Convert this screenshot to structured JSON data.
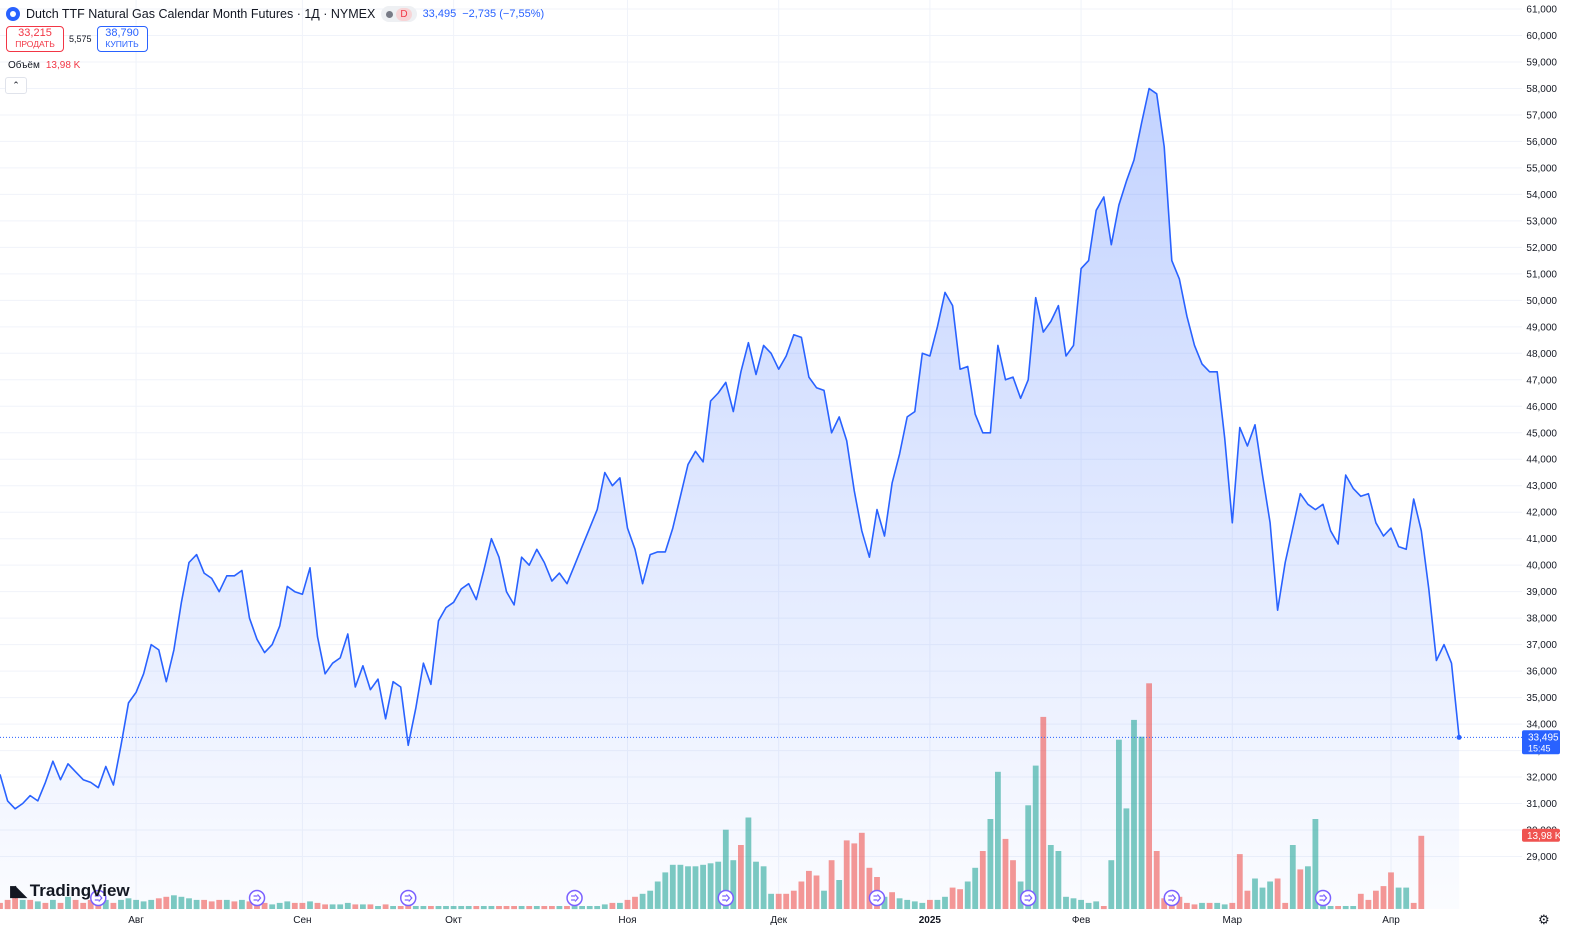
{
  "header": {
    "title": "Dutch TTF Natural Gas Calendar Month Futures · 1Д · NYMEX",
    "market_badge": "D",
    "last_price": "33,495",
    "change": "−2,735 (−7,55%)"
  },
  "trade": {
    "sell_price": "33,215",
    "sell_label": "ПРОДАТЬ",
    "spread": "5,575",
    "buy_price": "38,790",
    "buy_label": "КУПИТЬ"
  },
  "volume_legend": {
    "label": "Объём",
    "value": "13,98 K"
  },
  "logo_text": "TradingView",
  "colors": {
    "line": "#2962ff",
    "up": "#26a69a",
    "down": "#ef5350",
    "text": "#131722",
    "grid": "#f0f3fa"
  },
  "chart_data": {
    "type": "area",
    "ylim": [
      28.0,
      61.0
    ],
    "y_ticks": [
      "29,000",
      "30,000",
      "31,000",
      "32,000",
      "33,000",
      "34,000",
      "35,000",
      "36,000",
      "37,000",
      "38,000",
      "39,000",
      "40,000",
      "41,000",
      "42,000",
      "43,000",
      "44,000",
      "45,000",
      "46,000",
      "47,000",
      "48,000",
      "49,000",
      "50,000",
      "51,000",
      "52,000",
      "53,000",
      "54,000",
      "55,000",
      "56,000",
      "57,000",
      "58,000",
      "59,000",
      "60,000",
      "61,000"
    ],
    "x_ticks": [
      {
        "label": "Авг",
        "index": 18
      },
      {
        "label": "Сен",
        "index": 40
      },
      {
        "label": "Окт",
        "index": 60
      },
      {
        "label": "Ноя",
        "index": 83
      },
      {
        "label": "Дек",
        "index": 103
      },
      {
        "label": "2025",
        "index": 123
      },
      {
        "label": "Фев",
        "index": 143
      },
      {
        "label": "Мар",
        "index": 163
      },
      {
        "label": "Апр",
        "index": 184
      }
    ],
    "price": [
      32.1,
      31.1,
      30.8,
      31.0,
      31.3,
      31.1,
      31.8,
      32.6,
      31.9,
      32.5,
      32.2,
      31.9,
      31.8,
      31.6,
      32.4,
      31.7,
      33.2,
      34.8,
      35.2,
      35.9,
      37.0,
      36.8,
      35.6,
      36.8,
      38.6,
      40.1,
      40.4,
      39.7,
      39.5,
      39.0,
      39.6,
      39.6,
      39.8,
      38.0,
      37.2,
      36.7,
      37.0,
      37.7,
      39.2,
      39.0,
      38.9,
      39.9,
      37.3,
      35.9,
      36.3,
      36.5,
      37.4,
      35.4,
      36.2,
      35.3,
      35.7,
      34.2,
      35.6,
      35.4,
      33.2,
      34.6,
      36.3,
      35.5,
      37.9,
      38.4,
      38.6,
      39.1,
      39.3,
      38.7,
      39.8,
      41.0,
      40.3,
      39.0,
      38.5,
      40.3,
      40.0,
      40.6,
      40.1,
      39.4,
      39.7,
      39.3,
      40.0,
      40.7,
      41.4,
      42.1,
      43.5,
      43.0,
      43.3,
      41.4,
      40.6,
      39.3,
      40.4,
      40.5,
      40.5,
      41.4,
      42.6,
      43.8,
      44.3,
      43.9,
      46.2,
      46.5,
      46.9,
      45.8,
      47.3,
      48.4,
      47.2,
      48.3,
      48.0,
      47.4,
      47.9,
      48.7,
      48.6,
      47.1,
      46.7,
      46.6,
      45.0,
      45.6,
      44.7,
      42.8,
      41.3,
      40.3,
      42.1,
      41.1,
      43.1,
      44.2,
      45.6,
      45.8,
      48.0,
      47.9,
      49.0,
      50.3,
      49.8,
      47.4,
      47.5,
      45.7,
      45.0,
      45.0,
      48.3,
      47.0,
      47.1,
      46.3,
      47.0,
      50.1,
      48.8,
      49.2,
      49.8,
      47.9,
      48.3,
      51.2,
      51.5,
      53.4,
      53.9,
      52.1,
      53.6,
      54.5,
      55.3,
      56.7,
      58.0,
      57.8,
      55.8,
      51.5,
      50.8,
      49.4,
      48.3,
      47.6,
      47.3,
      47.3,
      44.8,
      41.6,
      45.2,
      44.5,
      45.3,
      43.4,
      41.6,
      38.3,
      40.1,
      41.4,
      42.7,
      42.3,
      42.1,
      42.3,
      41.3,
      40.8,
      43.4,
      42.9,
      42.6,
      42.7,
      41.6,
      41.1,
      41.4,
      40.7,
      40.6,
      42.5,
      41.3,
      39.1,
      36.4,
      37.0,
      36.3,
      33.5
    ],
    "volume": [
      {
        "v": 0.2,
        "up": 0
      },
      {
        "v": 0.3,
        "up": 0
      },
      {
        "v": 0.4,
        "up": 0
      },
      {
        "v": 0.3,
        "up": 1
      },
      {
        "v": 0.3,
        "up": 0
      },
      {
        "v": 0.25,
        "up": 1
      },
      {
        "v": 0.2,
        "up": 0
      },
      {
        "v": 0.3,
        "up": 1
      },
      {
        "v": 0.2,
        "up": 0
      },
      {
        "v": 0.4,
        "up": 1
      },
      {
        "v": 0.3,
        "up": 0
      },
      {
        "v": 0.2,
        "up": 0
      },
      {
        "v": 0.3,
        "up": 0
      },
      {
        "v": 0.25,
        "up": 0
      },
      {
        "v": 0.3,
        "up": 1
      },
      {
        "v": 0.2,
        "up": 0
      },
      {
        "v": 0.3,
        "up": 1
      },
      {
        "v": 0.35,
        "up": 1
      },
      {
        "v": 0.3,
        "up": 1
      },
      {
        "v": 0.25,
        "up": 1
      },
      {
        "v": 0.3,
        "up": 1
      },
      {
        "v": 0.35,
        "up": 0
      },
      {
        "v": 0.4,
        "up": 0
      },
      {
        "v": 0.45,
        "up": 1
      },
      {
        "v": 0.4,
        "up": 1
      },
      {
        "v": 0.35,
        "up": 1
      },
      {
        "v": 0.3,
        "up": 1
      },
      {
        "v": 0.3,
        "up": 0
      },
      {
        "v": 0.25,
        "up": 0
      },
      {
        "v": 0.3,
        "up": 0
      },
      {
        "v": 0.3,
        "up": 1
      },
      {
        "v": 0.25,
        "up": 0
      },
      {
        "v": 0.3,
        "up": 1
      },
      {
        "v": 0.25,
        "up": 0
      },
      {
        "v": 0.2,
        "up": 0
      },
      {
        "v": 0.2,
        "up": 0
      },
      {
        "v": 0.15,
        "up": 1
      },
      {
        "v": 0.2,
        "up": 1
      },
      {
        "v": 0.25,
        "up": 1
      },
      {
        "v": 0.2,
        "up": 0
      },
      {
        "v": 0.2,
        "up": 0
      },
      {
        "v": 0.25,
        "up": 1
      },
      {
        "v": 0.2,
        "up": 0
      },
      {
        "v": 0.15,
        "up": 0
      },
      {
        "v": 0.15,
        "up": 1
      },
      {
        "v": 0.15,
        "up": 1
      },
      {
        "v": 0.2,
        "up": 1
      },
      {
        "v": 0.15,
        "up": 0
      },
      {
        "v": 0.15,
        "up": 1
      },
      {
        "v": 0.15,
        "up": 0
      },
      {
        "v": 0.1,
        "up": 1
      },
      {
        "v": 0.15,
        "up": 0
      },
      {
        "v": 0.1,
        "up": 1
      },
      {
        "v": 0.1,
        "up": 0
      },
      {
        "v": 0.15,
        "up": 0
      },
      {
        "v": 0.1,
        "up": 1
      },
      {
        "v": 0.1,
        "up": 1
      },
      {
        "v": 0.1,
        "up": 0
      },
      {
        "v": 0.1,
        "up": 1
      },
      {
        "v": 0.1,
        "up": 1
      },
      {
        "v": 0.1,
        "up": 1
      },
      {
        "v": 0.1,
        "up": 1
      },
      {
        "v": 0.1,
        "up": 1
      },
      {
        "v": 0.1,
        "up": 0
      },
      {
        "v": 0.1,
        "up": 1
      },
      {
        "v": 0.1,
        "up": 1
      },
      {
        "v": 0.1,
        "up": 0
      },
      {
        "v": 0.1,
        "up": 0
      },
      {
        "v": 0.1,
        "up": 0
      },
      {
        "v": 0.1,
        "up": 1
      },
      {
        "v": 0.1,
        "up": 0
      },
      {
        "v": 0.1,
        "up": 1
      },
      {
        "v": 0.1,
        "up": 0
      },
      {
        "v": 0.1,
        "up": 0
      },
      {
        "v": 0.1,
        "up": 1
      },
      {
        "v": 0.1,
        "up": 0
      },
      {
        "v": 0.1,
        "up": 1
      },
      {
        "v": 0.1,
        "up": 1
      },
      {
        "v": 0.1,
        "up": 1
      },
      {
        "v": 0.1,
        "up": 1
      },
      {
        "v": 0.15,
        "up": 1
      },
      {
        "v": 0.2,
        "up": 0
      },
      {
        "v": 0.2,
        "up": 1
      },
      {
        "v": 0.3,
        "up": 0
      },
      {
        "v": 0.4,
        "up": 0
      },
      {
        "v": 0.5,
        "up": 1
      },
      {
        "v": 0.6,
        "up": 1
      },
      {
        "v": 0.9,
        "up": 1
      },
      {
        "v": 1.2,
        "up": 1
      },
      {
        "v": 1.45,
        "up": 1
      },
      {
        "v": 1.45,
        "up": 1
      },
      {
        "v": 1.4,
        "up": 1
      },
      {
        "v": 1.4,
        "up": 1
      },
      {
        "v": 1.45,
        "up": 1
      },
      {
        "v": 1.5,
        "up": 1
      },
      {
        "v": 1.55,
        "up": 1
      },
      {
        "v": 2.6,
        "up": 1
      },
      {
        "v": 1.6,
        "up": 1
      },
      {
        "v": 2.1,
        "up": 0
      },
      {
        "v": 3.0,
        "up": 1
      },
      {
        "v": 1.55,
        "up": 1
      },
      {
        "v": 1.4,
        "up": 1
      },
      {
        "v": 0.5,
        "up": 1
      },
      {
        "v": 0.5,
        "up": 0
      },
      {
        "v": 0.5,
        "up": 0
      },
      {
        "v": 0.6,
        "up": 0
      },
      {
        "v": 0.9,
        "up": 0
      },
      {
        "v": 1.25,
        "up": 0
      },
      {
        "v": 1.1,
        "up": 0
      },
      {
        "v": 0.6,
        "up": 1
      },
      {
        "v": 1.6,
        "up": 0
      },
      {
        "v": 0.95,
        "up": 1
      },
      {
        "v": 2.25,
        "up": 0
      },
      {
        "v": 2.15,
        "up": 0
      },
      {
        "v": 2.5,
        "up": 0
      },
      {
        "v": 1.35,
        "up": 0
      },
      {
        "v": 1.05,
        "up": 0
      },
      {
        "v": 0.4,
        "up": 1
      },
      {
        "v": 0.55,
        "up": 0
      },
      {
        "v": 0.35,
        "up": 1
      },
      {
        "v": 0.3,
        "up": 1
      },
      {
        "v": 0.25,
        "up": 1
      },
      {
        "v": 0.2,
        "up": 1
      },
      {
        "v": 0.3,
        "up": 0
      },
      {
        "v": 0.3,
        "up": 1
      },
      {
        "v": 0.4,
        "up": 1
      },
      {
        "v": 0.7,
        "up": 0
      },
      {
        "v": 0.65,
        "up": 0
      },
      {
        "v": 0.9,
        "up": 1
      },
      {
        "v": 1.35,
        "up": 1
      },
      {
        "v": 1.9,
        "up": 0
      },
      {
        "v": 2.95,
        "up": 1
      },
      {
        "v": 4.5,
        "up": 1
      },
      {
        "v": 2.3,
        "up": 0
      },
      {
        "v": 1.6,
        "up": 0
      },
      {
        "v": 0.9,
        "up": 1
      },
      {
        "v": 3.4,
        "up": 1
      },
      {
        "v": 4.7,
        "up": 1
      },
      {
        "v": 6.3,
        "up": 0
      },
      {
        "v": 2.1,
        "up": 1
      },
      {
        "v": 1.9,
        "up": 1
      },
      {
        "v": 0.4,
        "up": 1
      },
      {
        "v": 0.35,
        "up": 1
      },
      {
        "v": 0.3,
        "up": 1
      },
      {
        "v": 0.2,
        "up": 1
      },
      {
        "v": 0.25,
        "up": 1
      },
      {
        "v": 0.1,
        "up": 0
      },
      {
        "v": 1.6,
        "up": 1
      },
      {
        "v": 5.55,
        "up": 1
      },
      {
        "v": 3.3,
        "up": 1
      },
      {
        "v": 6.2,
        "up": 1
      },
      {
        "v": 5.65,
        "up": 1
      },
      {
        "v": 7.4,
        "up": 0
      },
      {
        "v": 1.9,
        "up": 0
      },
      {
        "v": 0.35,
        "up": 0
      },
      {
        "v": 0.6,
        "up": 0
      },
      {
        "v": 0.4,
        "up": 0
      },
      {
        "v": 0.2,
        "up": 0
      },
      {
        "v": 0.15,
        "up": 0
      },
      {
        "v": 0.2,
        "up": 1
      },
      {
        "v": 0.2,
        "up": 0
      },
      {
        "v": 0.2,
        "up": 1
      },
      {
        "v": 0.15,
        "up": 1
      },
      {
        "v": 0.2,
        "up": 0
      },
      {
        "v": 1.8,
        "up": 0
      },
      {
        "v": 0.6,
        "up": 0
      },
      {
        "v": 1.0,
        "up": 1
      },
      {
        "v": 0.7,
        "up": 1
      },
      {
        "v": 0.9,
        "up": 1
      },
      {
        "v": 1.0,
        "up": 0
      },
      {
        "v": 0.2,
        "up": 0
      },
      {
        "v": 2.1,
        "up": 1
      },
      {
        "v": 1.3,
        "up": 0
      },
      {
        "v": 1.4,
        "up": 1
      },
      {
        "v": 2.95,
        "up": 1
      },
      {
        "v": 0.1,
        "up": 1
      },
      {
        "v": 0.1,
        "up": 1
      },
      {
        "v": 0.1,
        "up": 0
      },
      {
        "v": 0.1,
        "up": 1
      },
      {
        "v": 0.1,
        "up": 1
      },
      {
        "v": 0.5,
        "up": 0
      },
      {
        "v": 0.3,
        "up": 0
      },
      {
        "v": 0.6,
        "up": 0
      },
      {
        "v": 0.75,
        "up": 0
      },
      {
        "v": 1.2,
        "up": 0
      },
      {
        "v": 0.7,
        "up": 1
      },
      {
        "v": 0.7,
        "up": 1
      },
      {
        "v": 0.2,
        "up": 0
      },
      {
        "v": 2.4,
        "up": 0
      }
    ],
    "event_marker_indices": [
      13,
      34,
      54,
      76,
      96,
      116,
      136,
      155,
      175
    ]
  },
  "price_label": {
    "value": "33,495",
    "time": "15:45"
  },
  "volume_label": "13,98 K"
}
